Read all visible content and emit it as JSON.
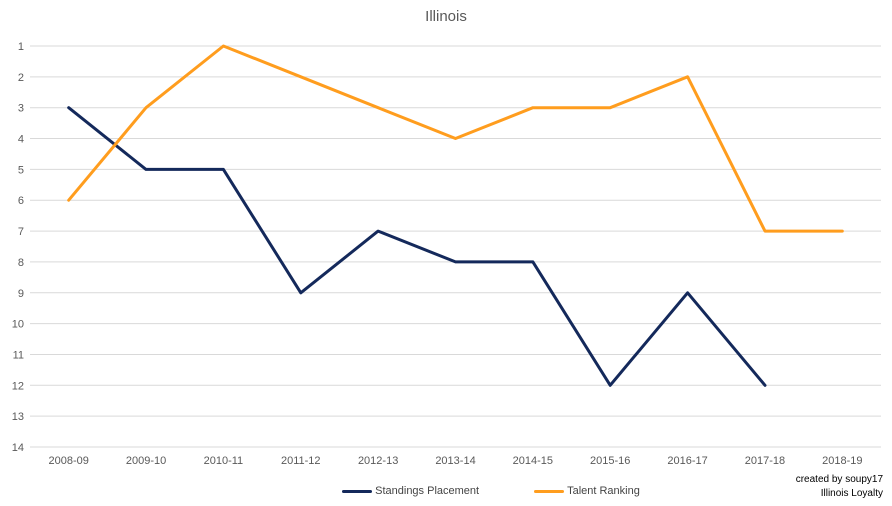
{
  "chart_data": {
    "type": "line",
    "title": "Illinois",
    "categories": [
      "2008-09",
      "2009-10",
      "2010-11",
      "2011-12",
      "2012-13",
      "2013-14",
      "2014-15",
      "2015-16",
      "2016-17",
      "2017-18",
      "2018-19"
    ],
    "series": [
      {
        "name": "Standings Placement",
        "color": "#14295B",
        "values": [
          3,
          5,
          5,
          9,
          7,
          8,
          8,
          12,
          9,
          12,
          null
        ]
      },
      {
        "name": "Talent Ranking",
        "color": "#FF9D1E",
        "values": [
          6,
          3,
          1,
          2,
          3,
          4,
          3,
          3,
          2,
          7,
          7
        ]
      }
    ],
    "xlabel": "",
    "ylabel": "",
    "y_axis": {
      "min": 1,
      "max": 14,
      "inverted": true,
      "ticks": [
        1,
        2,
        3,
        4,
        5,
        6,
        7,
        8,
        9,
        10,
        11,
        12,
        13,
        14
      ]
    },
    "grid": "horizontal-only",
    "gridline_color": "#D9D9D9",
    "axis_label_color": "#595959",
    "title_color": "#595959",
    "legend_position": "bottom-center"
  },
  "credits": {
    "line1": "created by soupy17",
    "line2": "Illinois Loyalty"
  }
}
